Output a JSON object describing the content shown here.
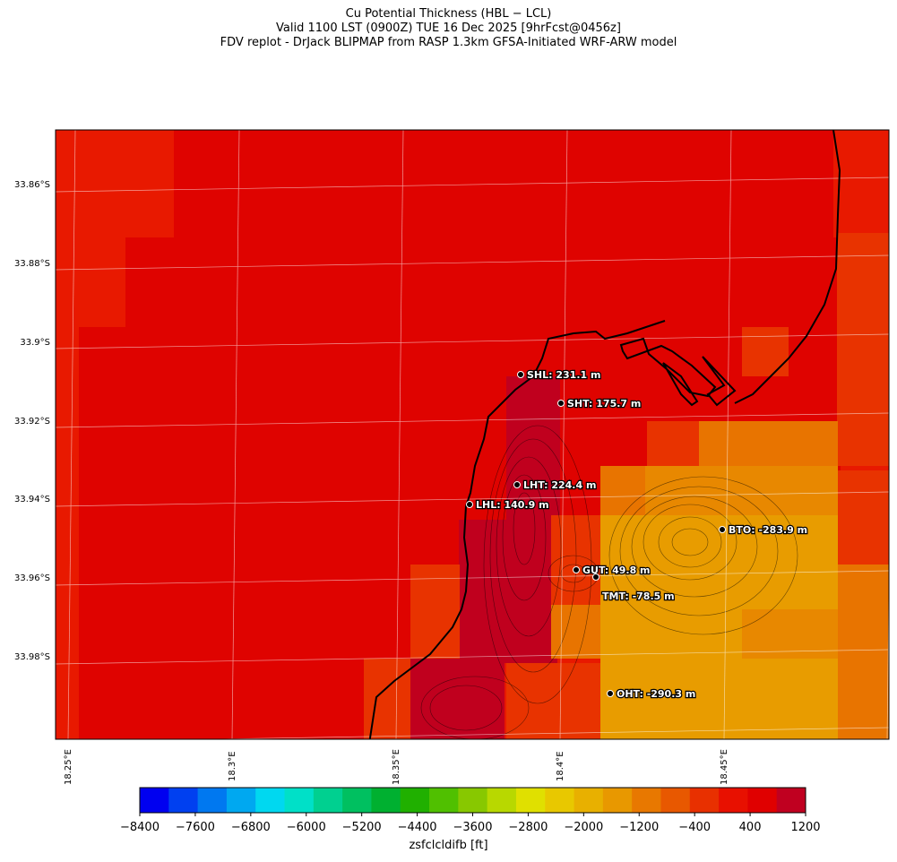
{
  "header": {
    "line1": "Cu Potential Thickness (HBL − LCL)",
    "line2": "Valid 1100 LST (0900Z) TUE 16 Dec 2025 [9hrFcst@0456z]",
    "line3": "FDV replot - DrJack BLIPMAP from RASP 1.3km GFSA-Initiated WRF-ARW model"
  },
  "axes": {
    "lat_ticks": [
      "33.86°S",
      "33.88°S",
      "33.9°S",
      "33.92°S",
      "33.94°S",
      "33.96°S",
      "33.98°S"
    ],
    "lon_ticks": [
      "18.25°E",
      "18.3°E",
      "18.35°E",
      "18.4°E",
      "18.45°E"
    ]
  },
  "stations": [
    {
      "label": "SHL: 231.1 m"
    },
    {
      "label": "SHT: 175.7 m"
    },
    {
      "label": "LHT: 224.4 m"
    },
    {
      "label": "LHL: 140.9 m"
    },
    {
      "label": "BTO: -283.9 m"
    },
    {
      "label": "GUT: 49.8 m"
    },
    {
      "label": "TMT: -78.5 m"
    },
    {
      "label": "OHT: -290.3 m"
    }
  ],
  "colorbar": {
    "label": "zsfclcldifb [ft]",
    "tick_labels": [
      "−8400",
      "−7600",
      "−6800",
      "−6000",
      "−5200",
      "−4400",
      "−3600",
      "−2800",
      "−2000",
      "−1200",
      "−400",
      "400",
      "1200"
    ],
    "colors": [
      "#0000f0",
      "#0040f0",
      "#0078f0",
      "#00a8f0",
      "#00d8f0",
      "#00e0c8",
      "#00d090",
      "#00c060",
      "#00b030",
      "#20b000",
      "#50c000",
      "#88c800",
      "#b8d800",
      "#e0e000",
      "#e8c800",
      "#e8b000",
      "#e89800",
      "#e87800",
      "#e85800",
      "#e83000",
      "#e81000",
      "#e00000",
      "#c00020"
    ]
  },
  "field_colors": {
    "bg": "#e81900",
    "dark_red": "#df0300",
    "crimson": "#c0001e",
    "red_orange": "#e83300",
    "orange": "#e87400",
    "gold": "#e89c00",
    "amber": "#e88800"
  }
}
